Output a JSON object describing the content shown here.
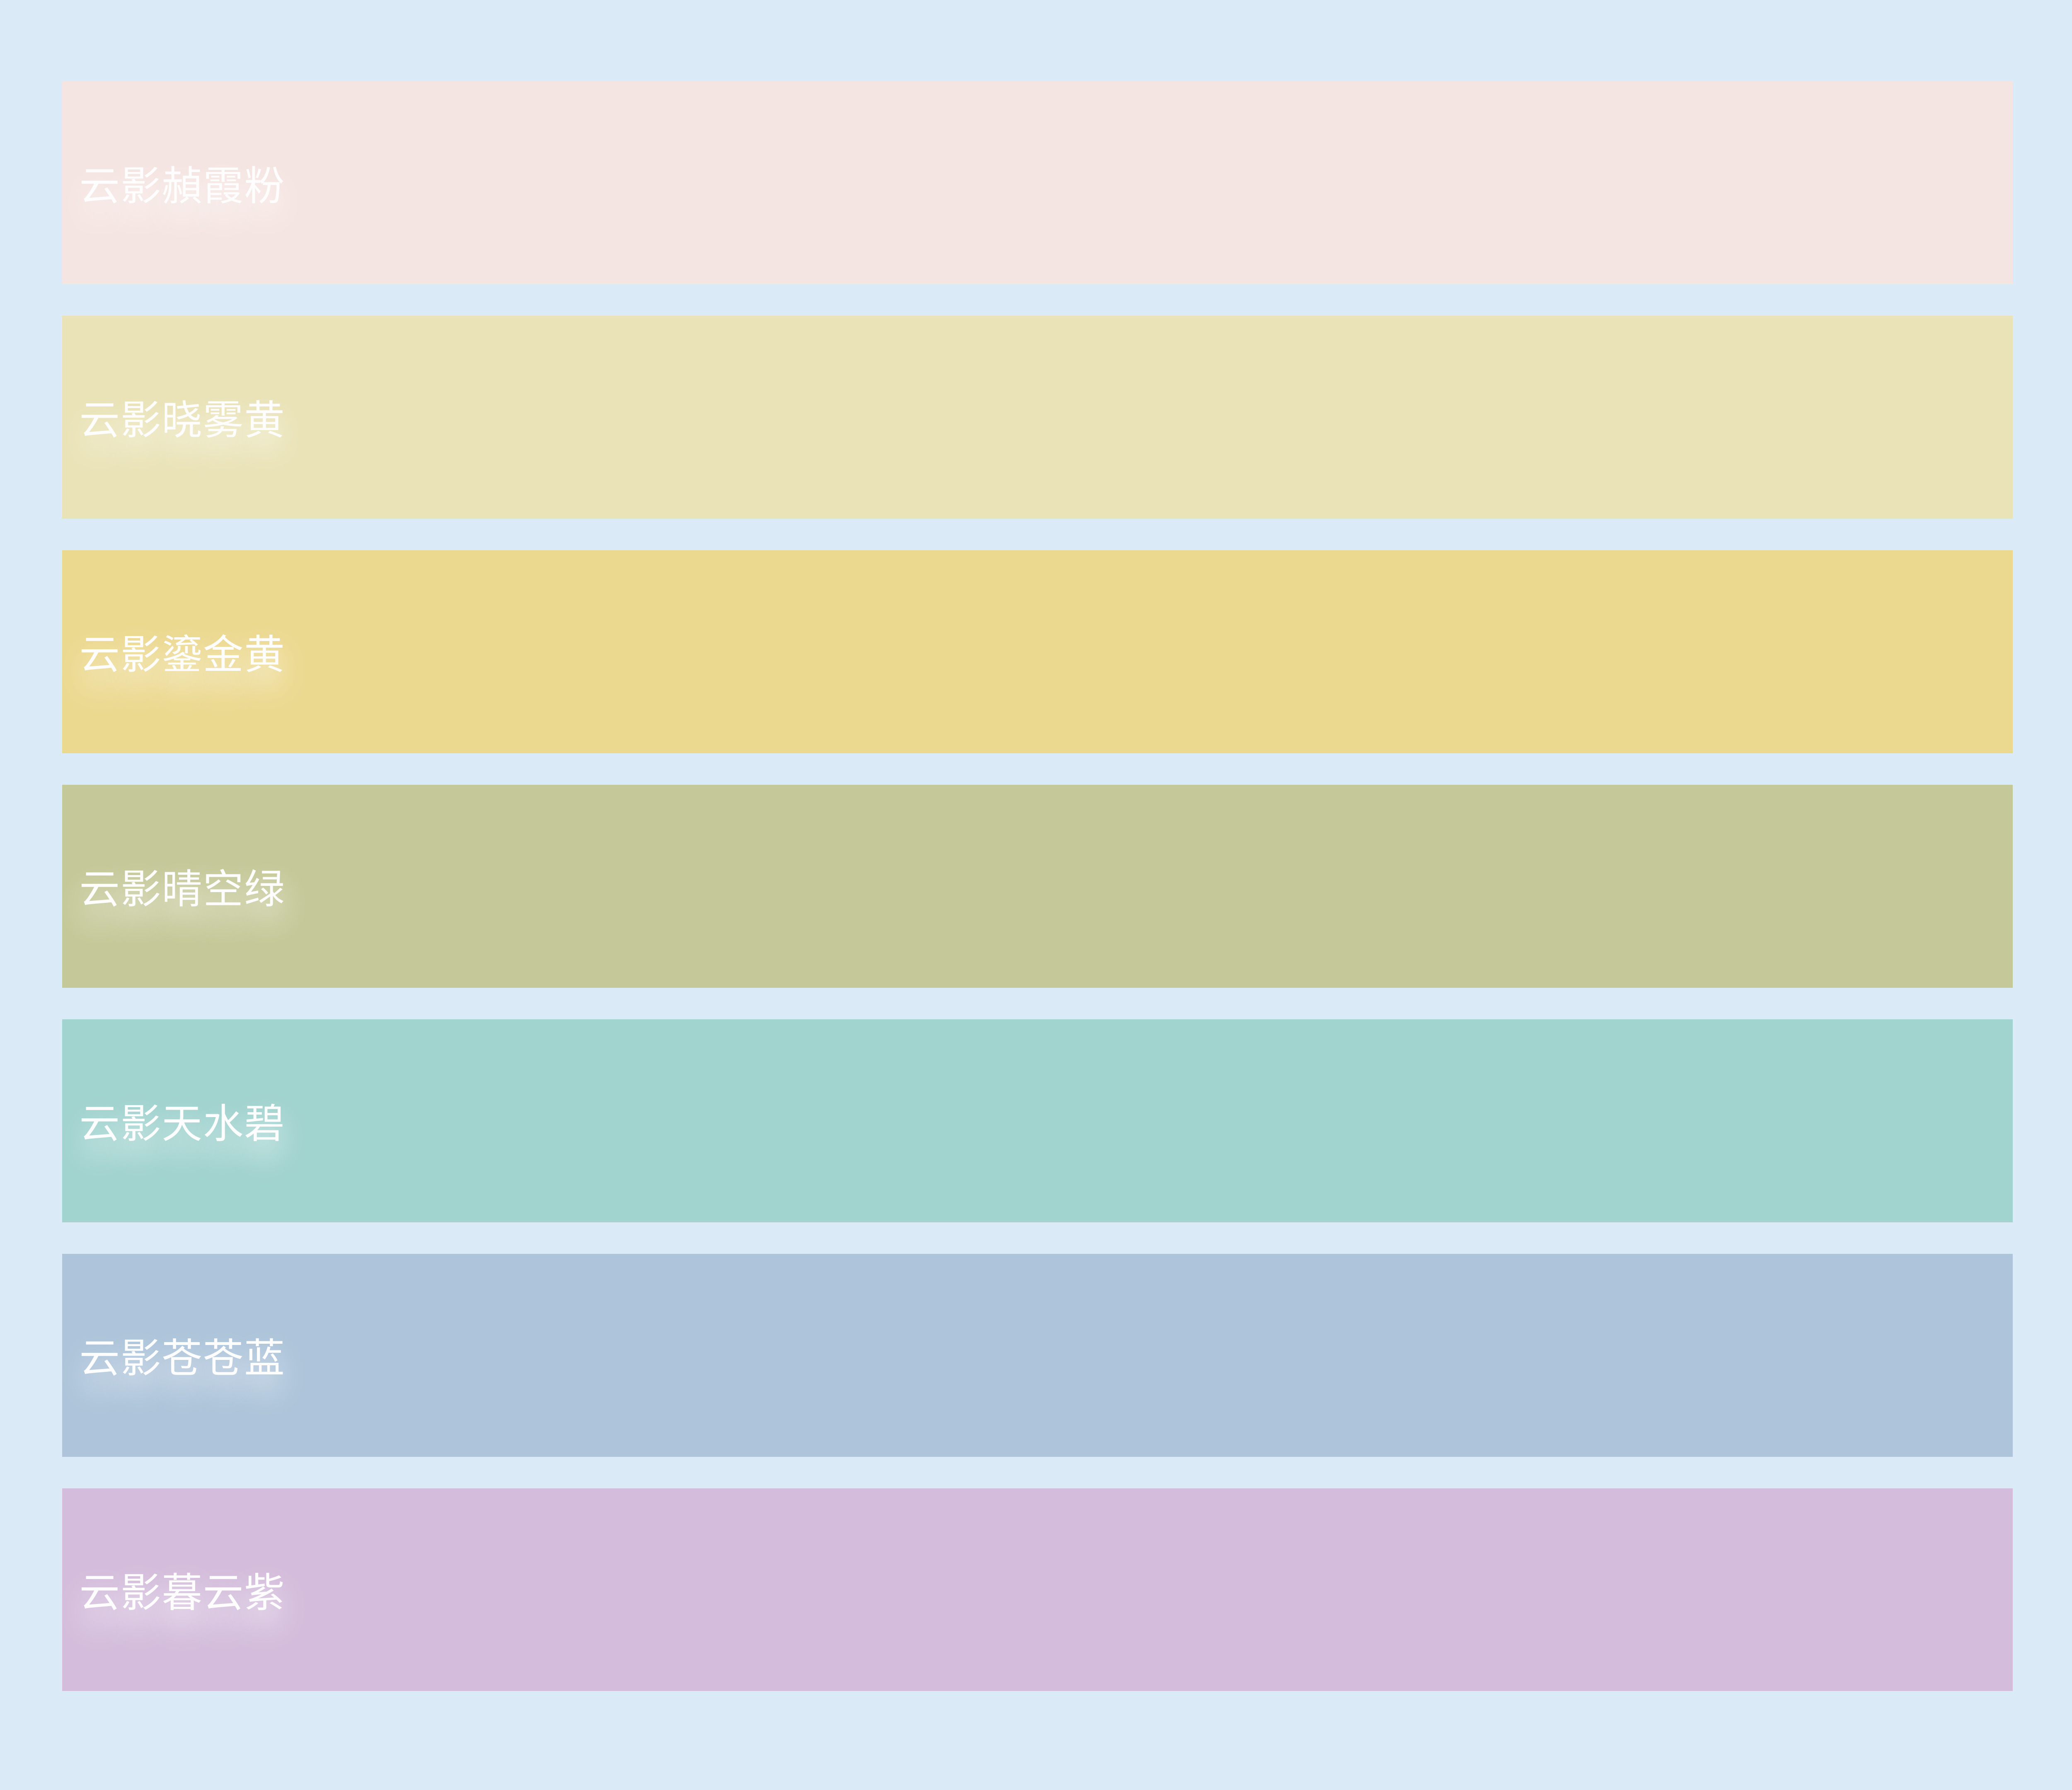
{
  "page": {
    "background": "#daeaf6",
    "label_text_color": "#fdfdfd"
  },
  "palette": {
    "items": [
      {
        "name": "云影赬霞粉",
        "color": "#f5e5e2"
      },
      {
        "name": "云影晓雾黄",
        "color": "#eae3b7"
      },
      {
        "name": "云影鎏金黄",
        "color": "#ecd990"
      },
      {
        "name": "云影晴空绿",
        "color": "#c5c999"
      },
      {
        "name": "云影天水碧",
        "color": "#a1d3cf"
      },
      {
        "name": "云影苍苍蓝",
        "color": "#adc4da"
      },
      {
        "name": "云影暮云紫",
        "color": "#d4bddc"
      }
    ]
  }
}
